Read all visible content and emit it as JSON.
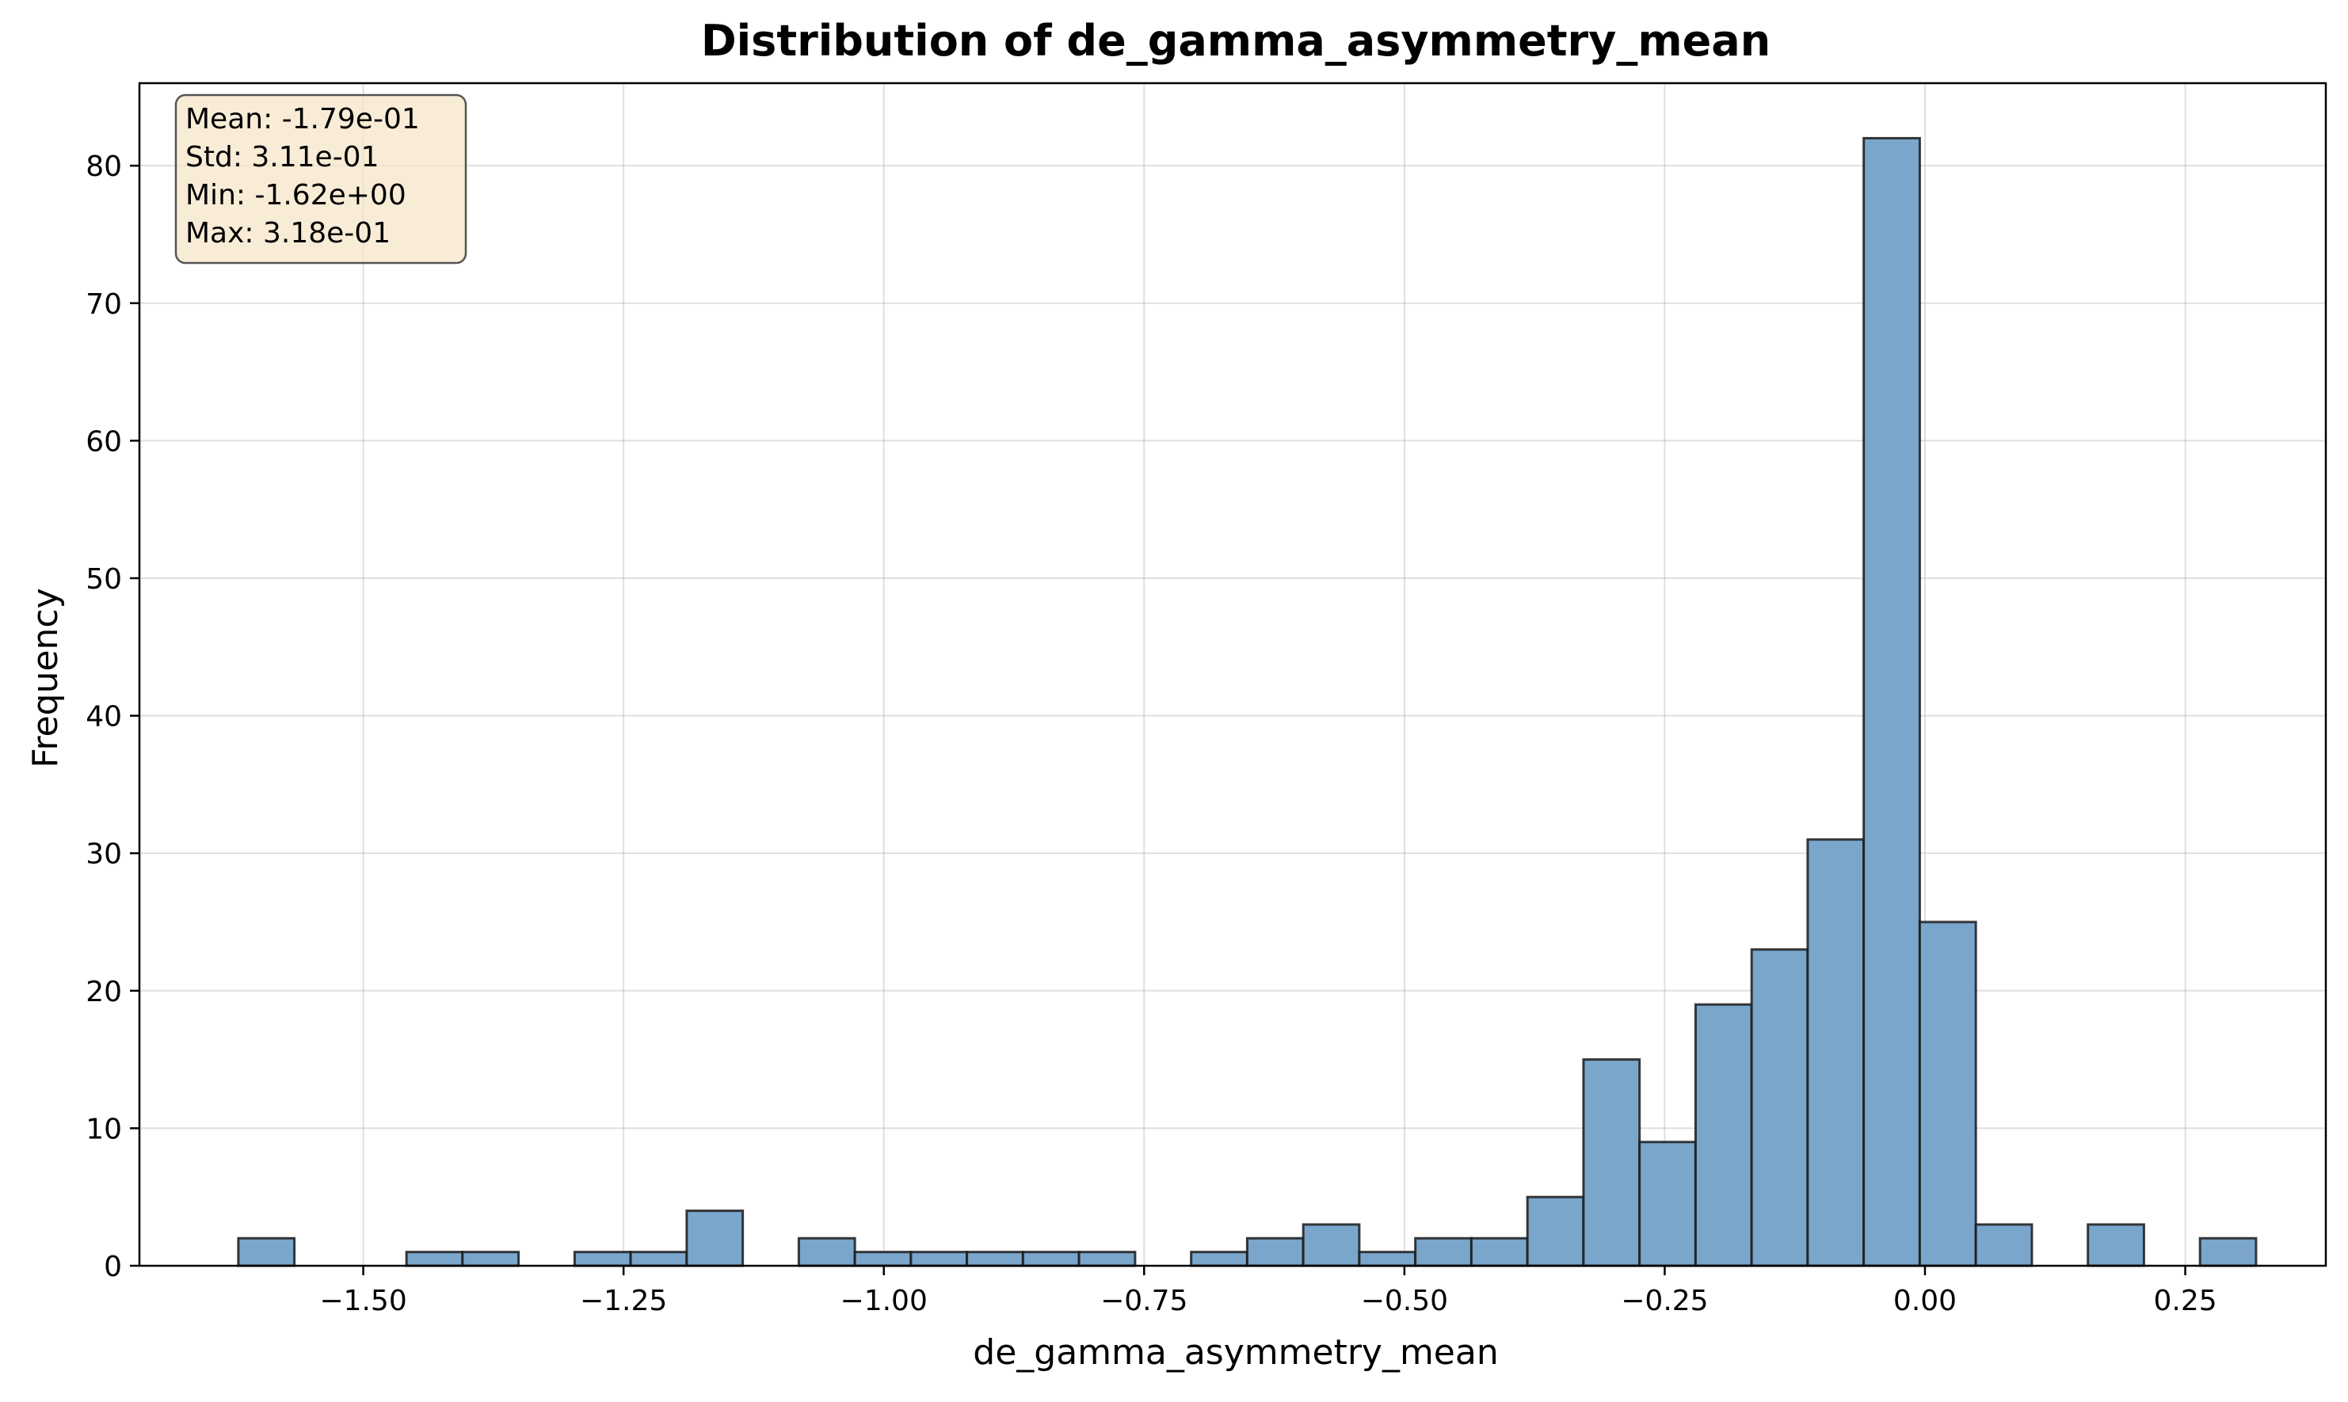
{
  "chart_data": {
    "type": "bar",
    "title": "Distribution of de_gamma_asymmetry_mean",
    "xlabel": "de_gamma_asymmetry_mean",
    "ylabel": "Frequency",
    "xlim": [
      -1.715,
      0.385
    ],
    "ylim": [
      0,
      86
    ],
    "grid": true,
    "bar_color": "#7aa6cc",
    "edge_color": "#1a1a1a",
    "x_ticks": [
      {
        "value": -1.5,
        "label": "−1.50"
      },
      {
        "value": -1.25,
        "label": "−1.25"
      },
      {
        "value": -1.0,
        "label": "−1.00"
      },
      {
        "value": -0.75,
        "label": "−0.75"
      },
      {
        "value": -0.5,
        "label": "−0.50"
      },
      {
        "value": -0.25,
        "label": "−0.25"
      },
      {
        "value": 0.0,
        "label": "0.00"
      },
      {
        "value": 0.25,
        "label": "0.25"
      }
    ],
    "y_ticks": [
      {
        "value": 0,
        "label": "0"
      },
      {
        "value": 10,
        "label": "10"
      },
      {
        "value": 20,
        "label": "20"
      },
      {
        "value": 30,
        "label": "30"
      },
      {
        "value": 40,
        "label": "40"
      },
      {
        "value": 50,
        "label": "50"
      },
      {
        "value": 60,
        "label": "60"
      },
      {
        "value": 70,
        "label": "70"
      },
      {
        "value": 80,
        "label": "80"
      }
    ],
    "bin_start": -1.62,
    "bin_end": 0.318,
    "counts": [
      2,
      0,
      0,
      1,
      1,
      0,
      1,
      1,
      4,
      0,
      2,
      1,
      1,
      1,
      1,
      1,
      0,
      1,
      2,
      3,
      1,
      2,
      2,
      5,
      15,
      9,
      19,
      23,
      31,
      82,
      25,
      3,
      0,
      3,
      0,
      2
    ],
    "stats": {
      "lines": [
        "Mean: -1.79e-01",
        "Std: 3.11e-01",
        "Min: -1.62e+00",
        "Max: 3.18e-01"
      ],
      "background": "#f5e6c8",
      "border": "#555555"
    }
  }
}
